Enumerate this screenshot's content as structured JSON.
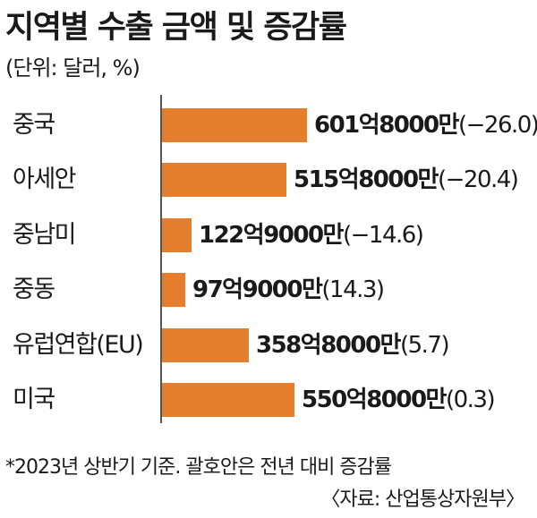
{
  "chart_data": {
    "type": "bar",
    "orientation": "horizontal",
    "title": "지역별 수출 금액 및 증감률",
    "unit_note": "(단위: 달러, %)",
    "categories": [
      "중국",
      "아세안",
      "중남미",
      "중동",
      "유럽연합(EU)",
      "미국"
    ],
    "values": [
      601.8,
      515.8,
      122.9,
      97.9,
      358.8,
      550.8
    ],
    "value_labels": [
      "601억8000만",
      "515억8000만",
      "122억9000만",
      "97억9000만",
      "358억8000만",
      "550억8000만"
    ],
    "change_labels": [
      "(−26.0)",
      "(−20.4)",
      "(−14.6)",
      "(14.3)",
      "(5.7)",
      "(0.3)"
    ],
    "changes": [
      -26.0,
      -20.4,
      -14.6,
      14.3,
      5.7,
      0.3
    ],
    "xlim": [
      0,
      601.8
    ],
    "bar_color": "#e57f2e",
    "footnote": "*2023년 상반기 기준. 괄호안은 전년 대비 증감률",
    "source": "〈자료: 산업통상자원부〉"
  }
}
